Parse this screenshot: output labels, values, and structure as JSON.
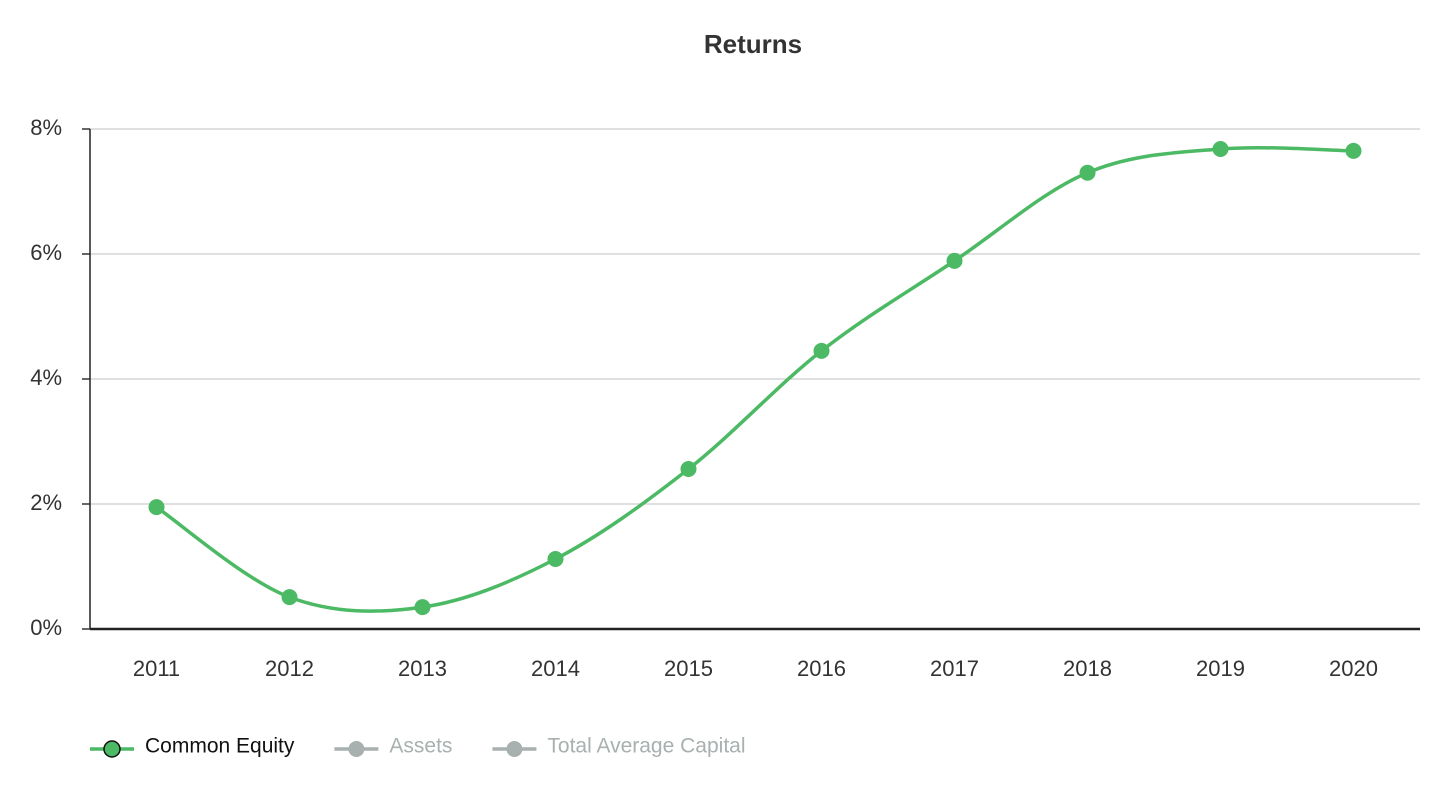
{
  "chart_data": {
    "type": "line",
    "title": "Returns",
    "categories": [
      "2011",
      "2012",
      "2013",
      "2014",
      "2015",
      "2016",
      "2017",
      "2018",
      "2019",
      "2020"
    ],
    "series": [
      {
        "name": "Common Equity",
        "color": "#4cb964",
        "values": [
          1.95,
          0.51,
          0.35,
          1.12,
          2.56,
          4.45,
          5.89,
          7.3,
          7.68,
          7.65
        ]
      },
      {
        "name": "Assets",
        "color": "#a9b0b0",
        "hidden": true
      },
      {
        "name": "Total Average Capital",
        "color": "#a9b0b0",
        "hidden": true
      }
    ],
    "ylim": [
      0,
      8
    ],
    "yticks": [
      {
        "value": 0,
        "label": "0%"
      },
      {
        "value": 2,
        "label": "2%"
      },
      {
        "value": 4,
        "label": "4%"
      },
      {
        "value": 6,
        "label": "6%"
      },
      {
        "value": 8,
        "label": "8%"
      }
    ],
    "grid": true,
    "legend": "bottom-left"
  }
}
